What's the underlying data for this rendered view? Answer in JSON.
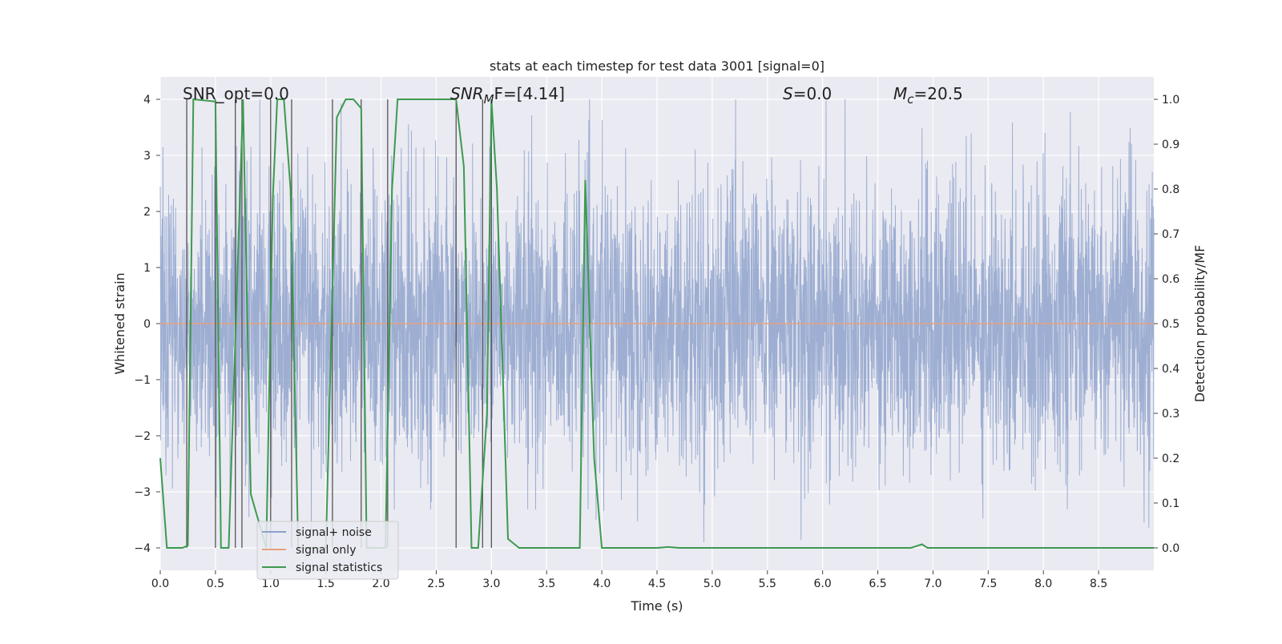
{
  "chart_data": {
    "type": "line",
    "title": "stats at each timestep for test data 3001 [signal=0]",
    "xlabel": "Time (s)",
    "ylabel_left": "Whitened strain",
    "ylabel_right": "Detection probability/MF",
    "xlim": [
      0.0,
      9.0
    ],
    "ylim_left": [
      -4.4,
      4.4
    ],
    "ylim_right": [
      -0.05,
      1.05
    ],
    "x_ticks": [
      0.0,
      0.5,
      1.0,
      1.5,
      2.0,
      2.5,
      3.0,
      3.5,
      4.0,
      4.5,
      5.0,
      5.5,
      6.0,
      6.5,
      7.0,
      7.5,
      8.0,
      8.5
    ],
    "x_tick_labels": [
      "0.0",
      "0.5",
      "1.0",
      "1.5",
      "2.0",
      "2.5",
      "3.0",
      "3.5",
      "4.0",
      "4.5",
      "5.0",
      "5.5",
      "6.0",
      "6.5",
      "7.0",
      "7.5",
      "8.0",
      "8.5"
    ],
    "y_left_ticks": [
      -4,
      -3,
      -2,
      -1,
      0,
      1,
      2,
      3,
      4
    ],
    "y_left_tick_labels": [
      "−4",
      "−3",
      "−2",
      "−1",
      "0",
      "1",
      "2",
      "3",
      "4"
    ],
    "y_right_ticks": [
      0.0,
      0.1,
      0.2,
      0.3,
      0.4,
      0.5,
      0.6,
      0.7,
      0.8,
      0.9,
      1.0
    ],
    "y_right_tick_labels": [
      "0.0",
      "0.1",
      "0.2",
      "0.3",
      "0.4",
      "0.5",
      "0.6",
      "0.7",
      "0.8",
      "0.9",
      "1.0"
    ],
    "grid": true,
    "annotations": [
      {
        "id": "snr-opt",
        "text": "SNR_opt=0.0"
      },
      {
        "id": "snr-mf",
        "prefix": "SNR",
        "sub": "M",
        "suffix": "F=[4.14]"
      },
      {
        "id": "s-stat",
        "prefix": "S",
        "suffix": "=0.0"
      },
      {
        "id": "mc",
        "prefix": "M",
        "sub": "c",
        "suffix": "=20.5"
      }
    ],
    "legend": {
      "location": "lower-left",
      "entries": [
        {
          "label": "signal+ noise",
          "color": "#8da0cb"
        },
        {
          "label": "signal only",
          "color": "#e5a27e"
        },
        {
          "label": "signal statistics",
          "color": "#3d9a4f"
        }
      ]
    },
    "series": [
      {
        "name": "signal+ noise",
        "axis": "left",
        "color": "#8fa3cd",
        "description_values": "whitened strain noise, amplitude approx within [-3.9, 4.0]",
        "amplitude_range": [
          -3.9,
          4.0
        ]
      },
      {
        "name": "signal only",
        "axis": "left",
        "color": "#e5a27e",
        "x": [
          0.0,
          9.0
        ],
        "y": [
          0.0,
          0.0
        ]
      },
      {
        "name": "signal statistics",
        "axis": "right",
        "color": "#3d9a4f",
        "x": [
          0.0,
          0.06,
          0.2,
          0.25,
          0.3,
          0.5,
          0.55,
          0.62,
          0.75,
          0.82,
          0.96,
          1.02,
          1.06,
          1.12,
          1.18,
          1.25,
          1.5,
          1.6,
          1.68,
          1.75,
          1.82,
          1.87,
          1.95,
          2.04,
          2.1,
          2.15,
          2.68,
          2.75,
          2.82,
          2.88,
          2.96,
          3.0,
          3.05,
          3.15,
          3.25,
          3.5,
          3.8,
          3.85,
          3.93,
          4.0,
          4.5,
          4.6,
          4.7,
          6.8,
          6.9,
          6.95,
          9.0
        ],
        "y": [
          0.2,
          0.0,
          0.0,
          0.005,
          1.0,
          0.995,
          0.0,
          0.0,
          1.0,
          0.12,
          0.0,
          0.78,
          1.0,
          1.0,
          0.8,
          0.0,
          0.0,
          0.96,
          1.0,
          1.0,
          0.98,
          0.0,
          0.0,
          0.0,
          0.8,
          1.0,
          1.0,
          0.85,
          0.0,
          0.0,
          0.3,
          1.0,
          0.8,
          0.02,
          0.0,
          0.0,
          0.0,
          0.82,
          0.2,
          0.0,
          0.0,
          0.002,
          0.0,
          0.0,
          0.008,
          0.0,
          0.0
        ]
      },
      {
        "name": "detection markers",
        "axis": "left",
        "color": "#555555",
        "x": [
          0.24,
          0.5,
          0.68,
          0.74,
          1.0,
          1.19,
          1.56,
          1.82,
          2.06,
          2.68,
          2.92,
          3.0
        ],
        "y_range": [
          -4.0,
          4.0
        ]
      }
    ]
  }
}
